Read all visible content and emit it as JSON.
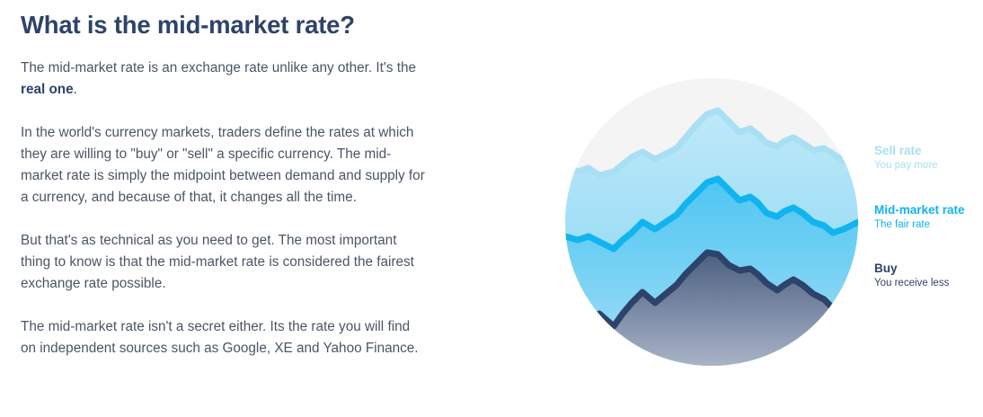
{
  "heading": "What is the mid-market rate?",
  "paragraph1": {
    "text_before": "The mid-market rate is an exchange rate unlike any other. It's the ",
    "strong": "real one",
    "text_after": "."
  },
  "paragraph2": "In the world's currency markets, traders define the rates at which they are willing to \"buy\" or \"sell\" a specific currency. The mid-market rate is simply the midpoint between demand and supply for a currency, and because of that, it changes all the time.",
  "paragraph3": "But that's as technical as you need to get. The most important thing to know is that the mid-market rate is considered the fairest exchange rate possible.",
  "paragraph4": "The mid-market rate isn't a secret either. Its the rate you will find on independent sources such as Google, XE and Yahoo Finance.",
  "legend": {
    "sell": {
      "title": "Sell rate",
      "subtitle": "You pay more",
      "color": "#a9dff3"
    },
    "mid": {
      "title": "Mid-market rate",
      "subtitle": "The fair rate",
      "color": "#10b4ef"
    },
    "buy": {
      "title": "Buy",
      "subtitle": "You receive less",
      "color": "#2e4369"
    }
  },
  "colors": {
    "heading": "#2e4369",
    "body_text": "#4a5565",
    "circle_background": "#f4f4f5"
  }
}
